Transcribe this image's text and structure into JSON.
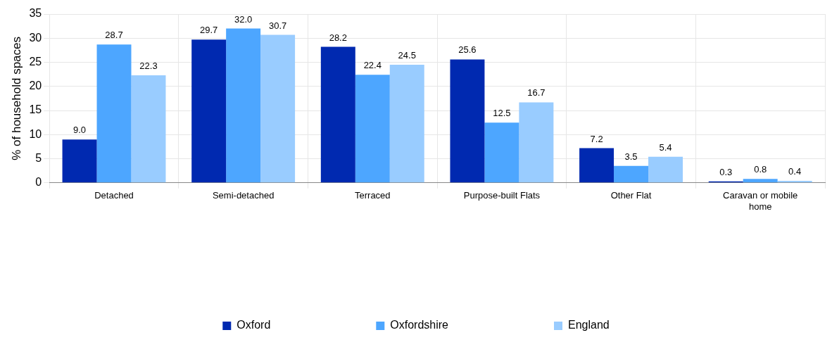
{
  "chart_data": {
    "type": "bar",
    "ylabel": "% of household spaces",
    "categories": [
      "Detached",
      "Semi-detached",
      "Terraced",
      "Purpose-built Flats",
      "Other Flat",
      "Caravan or mobile home"
    ],
    "series": [
      {
        "name": "Oxford",
        "color": "#0029b0",
        "values": [
          9,
          29.7,
          28.2,
          25.6,
          7.2,
          0.3
        ],
        "value_labels": [
          "9.0",
          "29.7",
          "28.2",
          "25.6",
          "7.2",
          "0.3"
        ]
      },
      {
        "name": "Oxfordshire",
        "color": "#4da6ff",
        "values": [
          28.7,
          32,
          22.4,
          12.5,
          3.5,
          0.8
        ],
        "value_labels": [
          "28.7",
          "32.0",
          "22.4",
          "12.5",
          "3.5",
          "0.8"
        ]
      },
      {
        "name": "England",
        "color": "#99ccff",
        "values": [
          22.3,
          30.7,
          24.5,
          16.7,
          5.4,
          0.4
        ],
        "value_labels": [
          "22.3",
          "30.7",
          "24.5",
          "16.7",
          "5.4",
          "0.4"
        ]
      }
    ],
    "ylim": [
      0,
      35
    ],
    "yticks": [
      0,
      5,
      10,
      15,
      20,
      25,
      30,
      35
    ],
    "grid": true,
    "legend": "bottom"
  }
}
